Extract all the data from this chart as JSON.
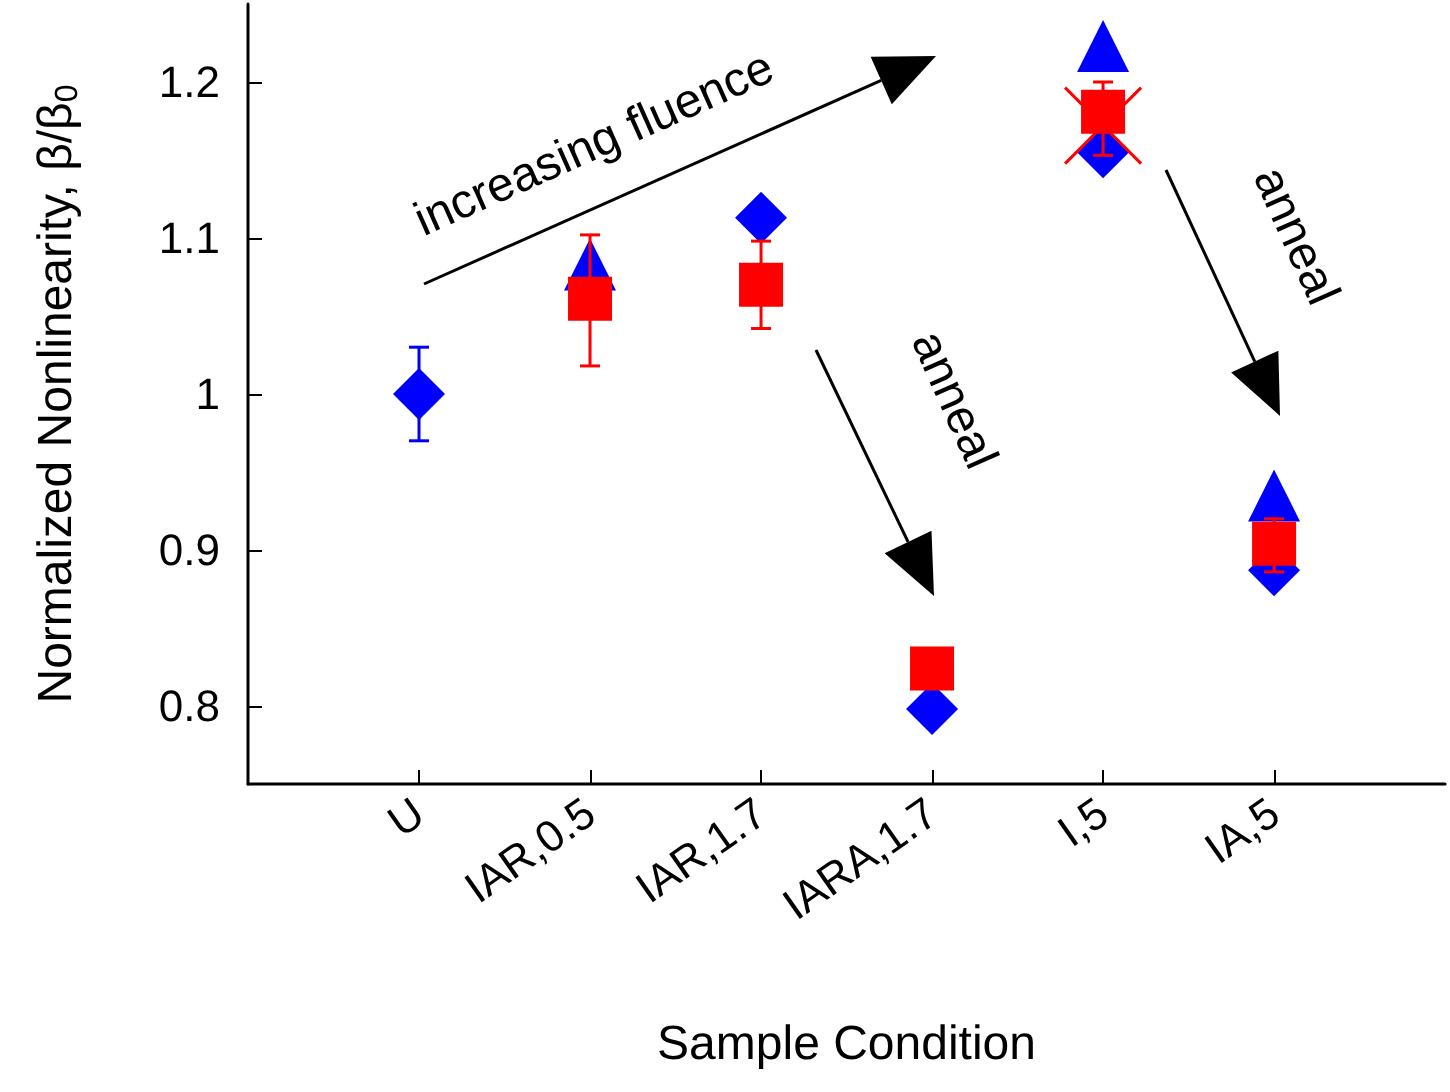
{
  "chart_data": {
    "type": "scatter",
    "xlabel": "Sample Condition",
    "ylabel": "Normalized Nonlinearity, β/β$_{0}$",
    "categories": [
      "U",
      "IAR,0.5",
      "IAR,1.7",
      "IARA,1.7",
      "I,5",
      "IA,5"
    ],
    "ylim": [
      0.75,
      1.25
    ],
    "yticks": [
      0.8,
      0.9,
      1,
      1.1,
      1.2
    ],
    "grid": false,
    "series": [
      {
        "color": "#0000ff",
        "marker": "diamond",
        "values": [
          1.0,
          null,
          1.113,
          0.798,
          1.155,
          0.887
        ],
        "errors": [
          0.03,
          null,
          null,
          null,
          null,
          null
        ]
      },
      {
        "color": "#0000ff",
        "marker": "triangle",
        "values": [
          null,
          1.083,
          null,
          null,
          1.223,
          0.935
        ]
      },
      {
        "color": "#ff0000",
        "marker": "square",
        "values": [
          null,
          1.061,
          1.07,
          0.824,
          1.181,
          0.904
        ],
        "errors": [
          null,
          [
            1.018,
            1.102
          ],
          [
            1.042,
            1.098
          ],
          null,
          [
            1.153,
            1.2
          ],
          [
            0.886,
            0.92
          ]
        ]
      },
      {
        "color": "#ff0000",
        "marker": "cross",
        "values": [
          null,
          null,
          null,
          null,
          1.172,
          null
        ]
      }
    ],
    "annotations": [
      "increasing fluence",
      "anneal",
      "anneal"
    ]
  }
}
